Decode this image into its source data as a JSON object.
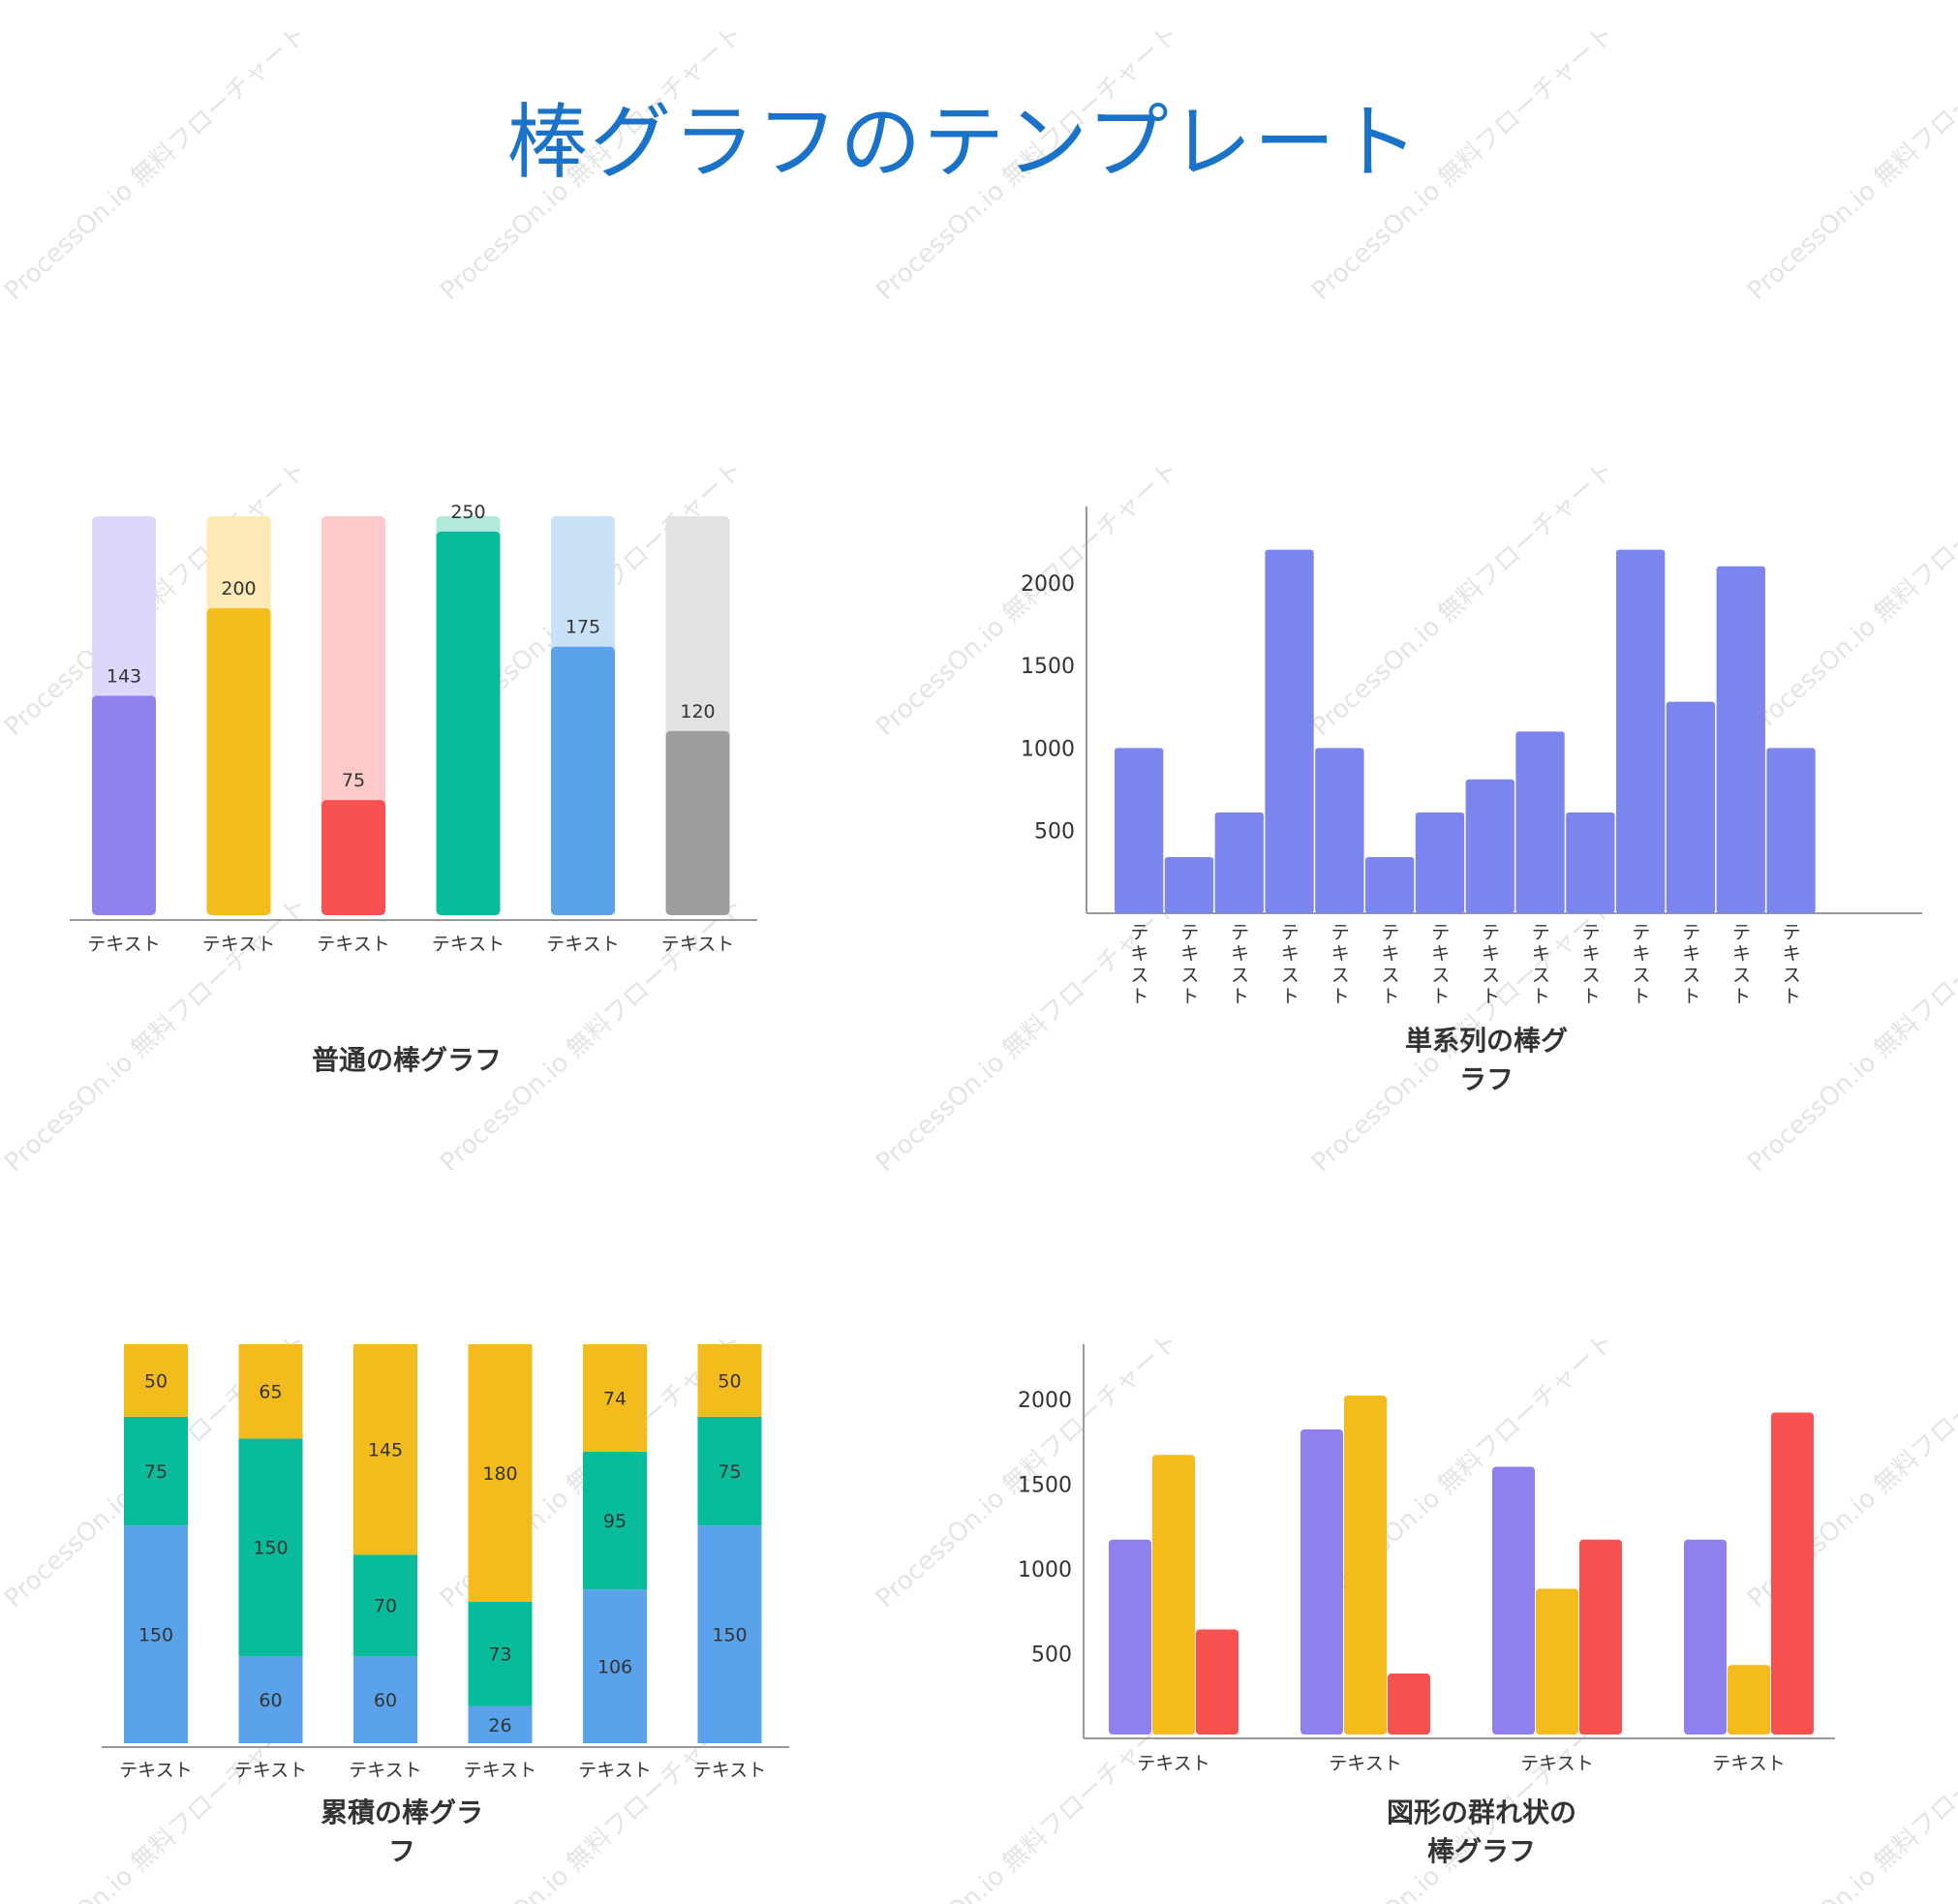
{
  "page": {
    "title": "棒グラフのテンプレート",
    "watermark": "ProcessOn.io 無料フローチャート"
  },
  "chart_data": [
    {
      "type": "bar",
      "variant": "progress",
      "title": "普通の棒グラフ",
      "categories": [
        "テキスト",
        "テキスト",
        "テキスト",
        "テキスト",
        "テキスト",
        "テキスト"
      ],
      "values": [
        143,
        200,
        75,
        250,
        175,
        120
      ],
      "max": 260,
      "colors": [
        "#8e80ef",
        "#f3bb1b",
        "#f95050",
        "#08bc9b",
        "#5aa3ea",
        "#9e9e9e"
      ],
      "track_colors": [
        "#dcd8fb",
        "#fde9b6",
        "#fdc9c9",
        "#b1eadc",
        "#cae2f8",
        "#e2e2e2"
      ]
    },
    {
      "type": "bar",
      "title": "単系列の棒グラフ",
      "categories": [
        "テキスト",
        "テキスト",
        "テキスト",
        "テキスト",
        "テキスト",
        "テキスト",
        "テキスト",
        "テキスト",
        "テキスト",
        "テキスト",
        "テキスト",
        "テキスト",
        "テキスト",
        "テキスト"
      ],
      "values": [
        1000,
        340,
        610,
        2200,
        1000,
        340,
        610,
        810,
        1100,
        610,
        2200,
        1280,
        2100,
        1000
      ],
      "yticks": [
        500,
        1000,
        1500,
        2000
      ],
      "ylim": [
        0,
        2400
      ],
      "color": "#7b85ee"
    },
    {
      "type": "bar",
      "variant": "stacked",
      "title": "累積の棒グラフ",
      "categories": [
        "テキスト",
        "テキスト",
        "テキスト",
        "テキスト",
        "テキスト",
        "テキスト"
      ],
      "series": [
        {
          "values": [
            150,
            60,
            60,
            26,
            106,
            150
          ],
          "color": "#5aa3ea"
        },
        {
          "values": [
            75,
            150,
            70,
            73,
            95,
            75
          ],
          "color": "#08bc9b"
        },
        {
          "values": [
            50,
            65,
            145,
            180,
            74,
            50
          ],
          "color": "#f3bb1b"
        }
      ]
    },
    {
      "type": "bar",
      "variant": "grouped",
      "title": "図形の群れ状の棒グラフ",
      "categories": [
        "テキスト",
        "テキスト",
        "テキスト",
        "テキスト"
      ],
      "series": [
        {
          "values": [
            1150,
            1800,
            1580,
            1150
          ],
          "color": "#8e80ef"
        },
        {
          "values": [
            1650,
            2000,
            860,
            410
          ],
          "color": "#f3bb1b"
        },
        {
          "values": [
            620,
            360,
            1150,
            1900
          ],
          "color": "#f95050"
        }
      ],
      "yticks": [
        500,
        1000,
        1500,
        2000
      ],
      "ylim": [
        0,
        2300
      ]
    }
  ]
}
